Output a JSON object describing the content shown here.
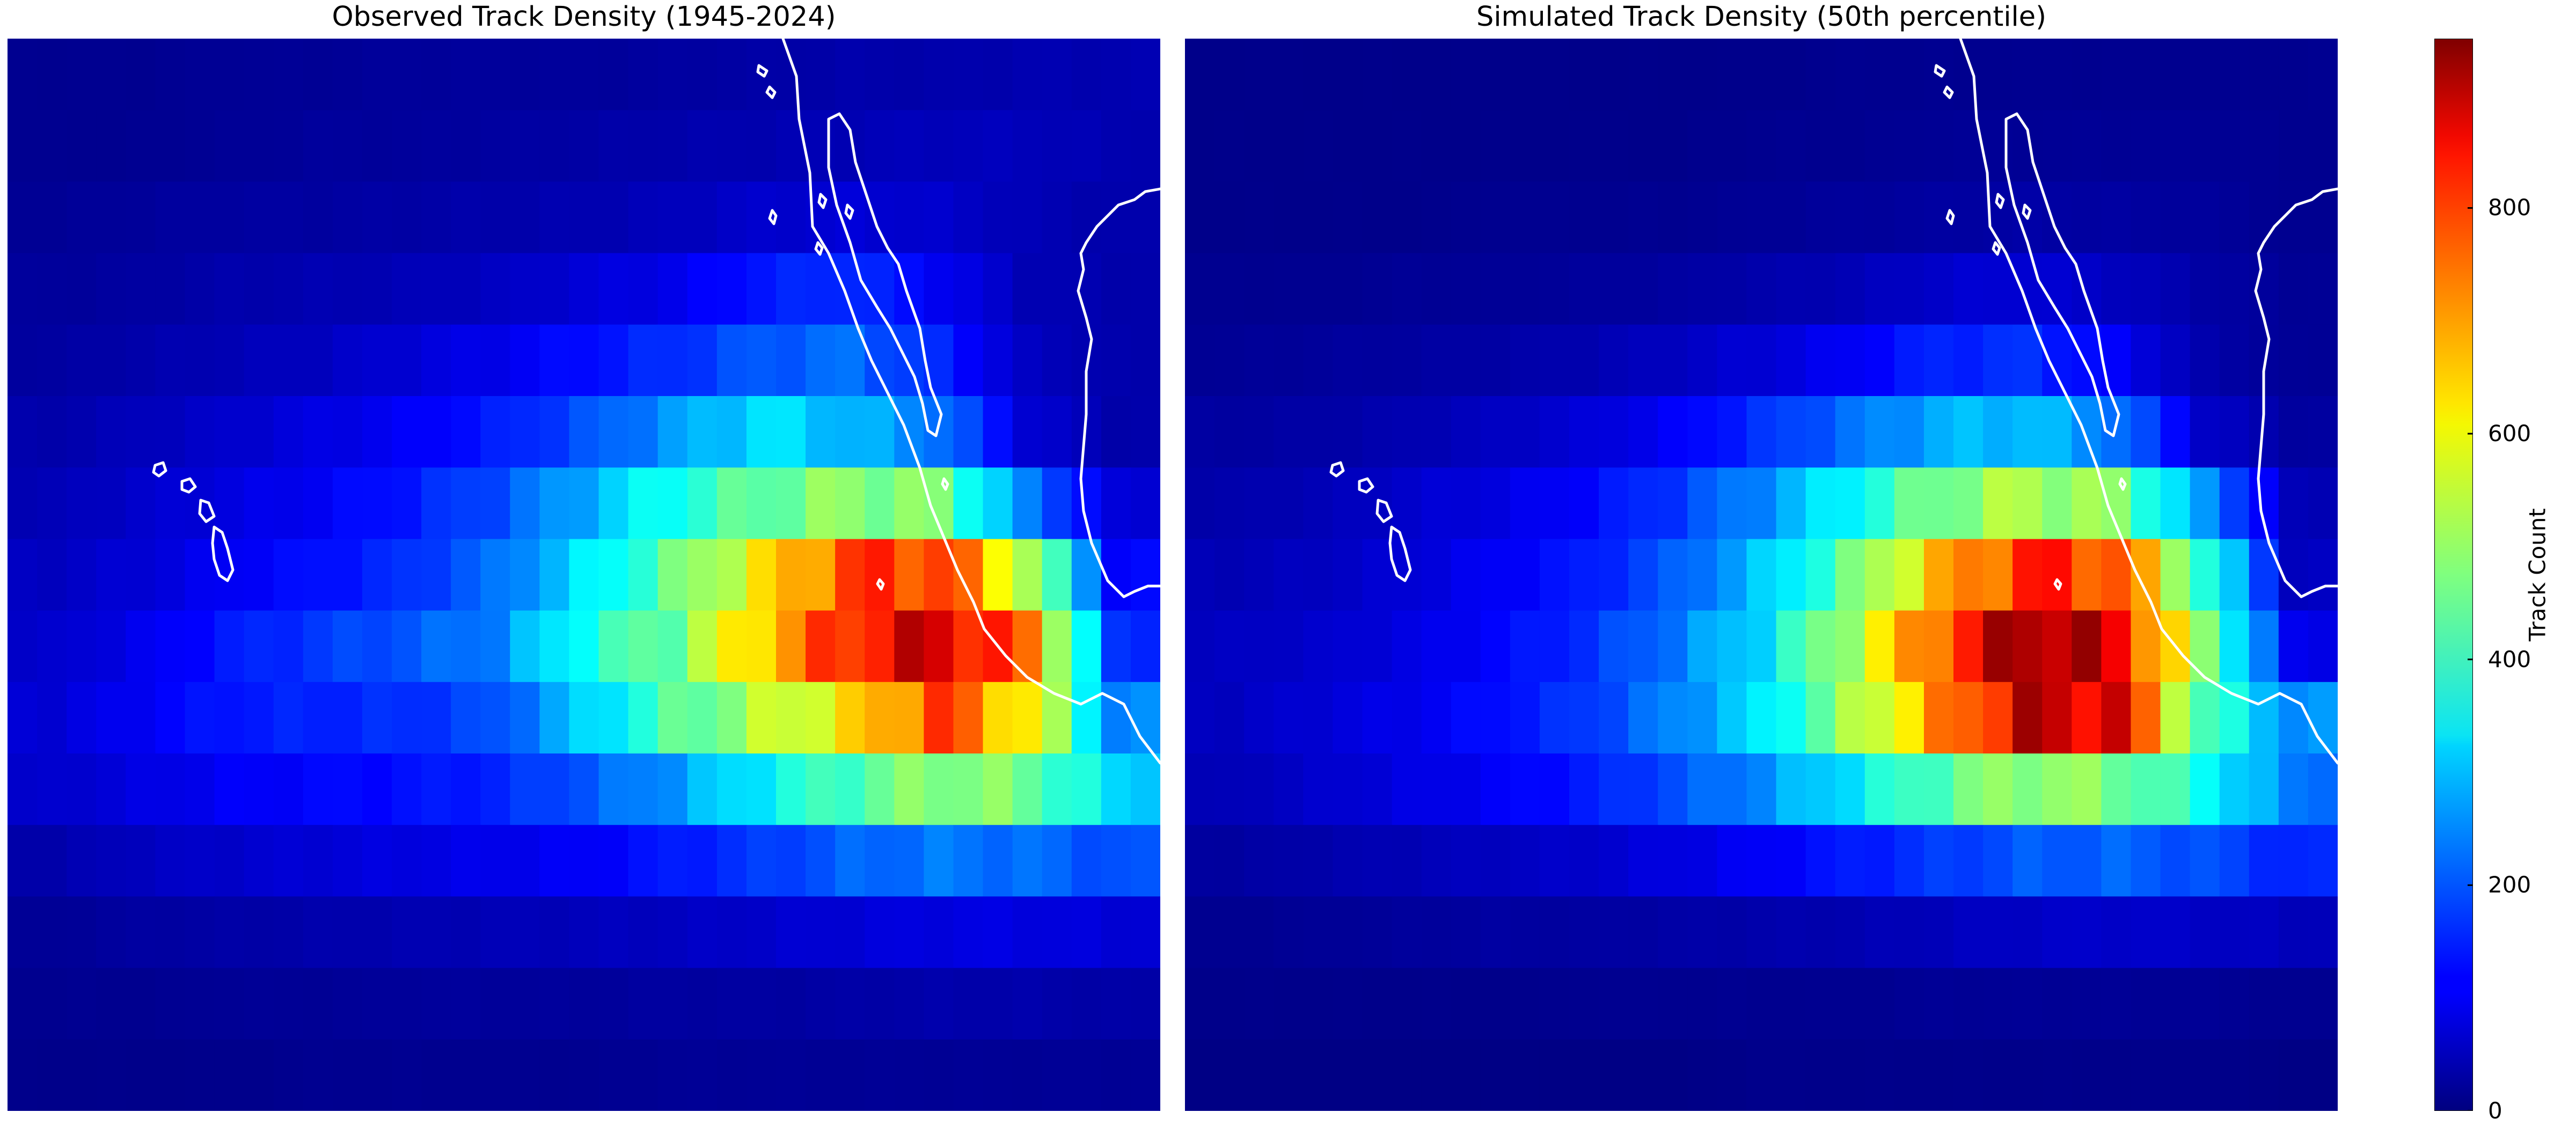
{
  "chart_data": {
    "type": "heatmap",
    "colormap": "jet",
    "colorbar": {
      "label": "Track Count",
      "range": [
        0,
        950
      ],
      "ticks": [
        0,
        200,
        400,
        600,
        800
      ]
    },
    "grid": {
      "columns": 39,
      "rows": 15
    },
    "panels": [
      {
        "title": "Observed Track Density (1945-2024)",
        "coarse_values": [
          [
            15,
            15,
            20,
            20,
            25,
            25,
            25,
            30,
            35,
            40,
            40,
            45,
            45
          ],
          [
            15,
            15,
            20,
            25,
            25,
            30,
            35,
            40,
            45,
            50,
            55,
            55,
            45
          ],
          [
            20,
            25,
            30,
            30,
            35,
            40,
            45,
            55,
            70,
            80,
            70,
            50,
            40
          ],
          [
            25,
            30,
            40,
            45,
            50,
            60,
            80,
            100,
            140,
            160,
            110,
            50,
            40
          ],
          [
            30,
            40,
            50,
            60,
            80,
            100,
            130,
            160,
            200,
            220,
            150,
            60,
            40
          ],
          [
            40,
            55,
            70,
            90,
            110,
            140,
            190,
            260,
            330,
            290,
            230,
            80,
            40
          ],
          [
            50,
            70,
            90,
            110,
            140,
            190,
            280,
            380,
            450,
            490,
            470,
            230,
            80
          ],
          [
            60,
            80,
            110,
            130,
            160,
            220,
            330,
            450,
            600,
            770,
            780,
            530,
            120
          ],
          [
            70,
            100,
            140,
            170,
            200,
            240,
            380,
            460,
            650,
            800,
            880,
            720,
            160
          ],
          [
            80,
            110,
            140,
            150,
            160,
            190,
            310,
            430,
            520,
            610,
            770,
            610,
            240
          ],
          [
            70,
            90,
            110,
            120,
            130,
            150,
            200,
            260,
            350,
            430,
            490,
            460,
            320
          ],
          [
            40,
            60,
            70,
            80,
            90,
            100,
            110,
            140,
            170,
            210,
            230,
            220,
            190
          ],
          [
            20,
            30,
            35,
            40,
            45,
            50,
            55,
            60,
            70,
            80,
            90,
            90,
            80
          ],
          [
            15,
            15,
            20,
            20,
            25,
            25,
            25,
            30,
            30,
            35,
            40,
            40,
            35
          ],
          [
            10,
            10,
            10,
            15,
            15,
            15,
            15,
            20,
            20,
            20,
            20,
            20,
            20
          ]
        ]
      },
      {
        "title": "Simulated Track Density (50th percentile)",
        "coarse_values": [
          [
            10,
            10,
            10,
            10,
            10,
            10,
            10,
            15,
            15,
            15,
            15,
            15,
            15
          ],
          [
            10,
            10,
            10,
            10,
            10,
            10,
            15,
            15,
            20,
            20,
            20,
            20,
            15
          ],
          [
            10,
            10,
            10,
            15,
            15,
            15,
            20,
            25,
            30,
            35,
            30,
            25,
            15
          ],
          [
            15,
            15,
            20,
            20,
            25,
            30,
            40,
            50,
            70,
            80,
            60,
            35,
            20
          ],
          [
            20,
            25,
            30,
            35,
            45,
            60,
            80,
            110,
            150,
            160,
            110,
            40,
            20
          ],
          [
            30,
            35,
            45,
            60,
            80,
            110,
            160,
            220,
            280,
            300,
            230,
            70,
            30
          ],
          [
            40,
            50,
            70,
            90,
            120,
            170,
            250,
            360,
            470,
            520,
            480,
            250,
            50
          ],
          [
            50,
            60,
            80,
            110,
            140,
            200,
            300,
            450,
            650,
            800,
            760,
            400,
            60
          ],
          [
            60,
            70,
            90,
            120,
            160,
            230,
            330,
            520,
            750,
            940,
            850,
            480,
            100
          ],
          [
            60,
            80,
            100,
            130,
            170,
            240,
            330,
            500,
            690,
            880,
            860,
            420,
            250
          ],
          [
            50,
            70,
            90,
            110,
            140,
            190,
            250,
            340,
            440,
            500,
            470,
            370,
            230
          ],
          [
            30,
            40,
            50,
            60,
            70,
            90,
            110,
            140,
            170,
            200,
            210,
            190,
            150
          ],
          [
            15,
            20,
            25,
            30,
            30,
            35,
            40,
            45,
            55,
            65,
            70,
            65,
            55
          ],
          [
            10,
            10,
            10,
            10,
            15,
            15,
            15,
            15,
            20,
            20,
            20,
            20,
            15
          ],
          [
            5,
            5,
            5,
            5,
            5,
            5,
            10,
            10,
            10,
            10,
            10,
            10,
            5
          ]
        ]
      }
    ]
  }
}
